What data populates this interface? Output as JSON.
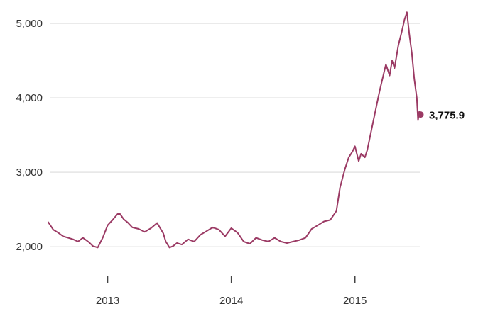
{
  "chart_data": {
    "type": "line",
    "title": "",
    "xlabel": "",
    "ylabel": "",
    "xlim": [
      2012.52,
      2015.53
    ],
    "ylim": [
      1850,
      5200
    ],
    "grid": true,
    "y_ticks": [
      2000,
      3000,
      4000,
      5000
    ],
    "y_tick_labels": [
      "2,000",
      "3,000",
      "4,000",
      "5,000"
    ],
    "x_ticks": [
      2013.0,
      2014.0,
      2015.0
    ],
    "x_tick_labels": [
      "2013",
      "2014",
      "2015"
    ],
    "line_color": "#9b3a64",
    "grid_color": "#e4e4e4",
    "end_label": "3,775.9",
    "series": [
      {
        "x": [
          2012.52,
          2012.56,
          2012.6,
          2012.64,
          2012.68,
          2012.72,
          2012.76,
          2012.8,
          2012.85,
          2012.88,
          2012.92,
          2012.96,
          2013.0,
          2013.04,
          2013.08,
          2013.1,
          2013.13,
          2013.16,
          2013.2,
          2013.25,
          2013.3,
          2013.35,
          2013.4,
          2013.45,
          2013.47,
          2013.5,
          2013.53,
          2013.56,
          2013.6,
          2013.65,
          2013.7,
          2013.75,
          2013.8,
          2013.85,
          2013.9,
          2013.95,
          2014.0,
          2014.05,
          2014.1,
          2014.15,
          2014.2,
          2014.25,
          2014.3,
          2014.35,
          2014.4,
          2014.45,
          2014.5,
          2014.55,
          2014.6,
          2014.65,
          2014.7,
          2014.75,
          2014.8,
          2014.85,
          2014.88,
          2014.92,
          2014.95,
          2014.98,
          2015.0,
          2015.03,
          2015.05,
          2015.08,
          2015.1,
          2015.15,
          2015.2,
          2015.25,
          2015.28,
          2015.3,
          2015.32,
          2015.35,
          2015.38,
          2015.4,
          2015.42,
          2015.44,
          2015.46,
          2015.48,
          2015.5,
          2015.51,
          2015.52,
          2015.53
        ],
        "y": [
          2330,
          2230,
          2190,
          2140,
          2120,
          2100,
          2070,
          2120,
          2060,
          2010,
          1990,
          2120,
          2290,
          2360,
          2440,
          2440,
          2370,
          2330,
          2260,
          2240,
          2200,
          2250,
          2320,
          2180,
          2070,
          1990,
          2010,
          2050,
          2030,
          2100,
          2070,
          2160,
          2210,
          2260,
          2230,
          2140,
          2250,
          2190,
          2070,
          2040,
          2120,
          2090,
          2070,
          2120,
          2070,
          2050,
          2070,
          2090,
          2120,
          2240,
          2290,
          2340,
          2360,
          2480,
          2800,
          3050,
          3200,
          3280,
          3350,
          3150,
          3250,
          3200,
          3300,
          3700,
          4100,
          4450,
          4300,
          4500,
          4400,
          4700,
          4900,
          5050,
          5150,
          4850,
          4600,
          4250,
          4000,
          3700,
          3820,
          3776
        ]
      }
    ]
  }
}
